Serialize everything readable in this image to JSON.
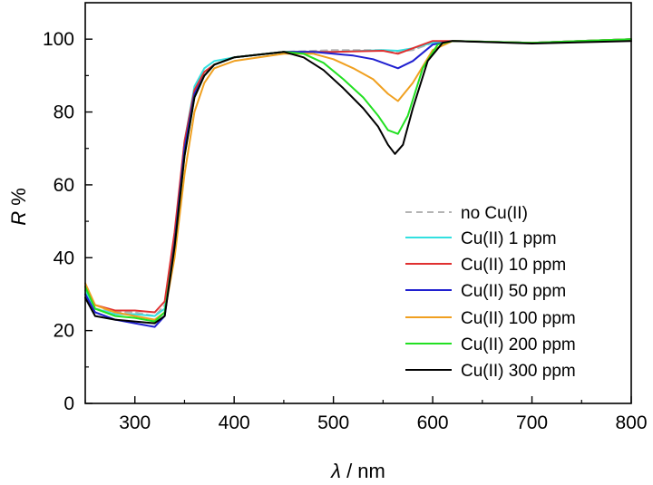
{
  "chart_data": {
    "type": "line",
    "xlabel_symbol": "λ",
    "xlabel_unit": " / nm",
    "ylabel_symbol": "R",
    "ylabel_unit": " %",
    "xlim": [
      250,
      800
    ],
    "ylim": [
      0,
      110
    ],
    "xticks": [
      300,
      400,
      500,
      600,
      700,
      800
    ],
    "yticks": [
      0,
      20,
      40,
      60,
      80,
      100
    ],
    "legend_position": "center-right",
    "series": [
      {
        "name": "no Cu(II)",
        "color": "#b4b4b4",
        "dashed": true,
        "x": [
          250,
          260,
          280,
          300,
          320,
          330,
          340,
          350,
          360,
          370,
          380,
          400,
          450,
          500,
          550,
          565,
          580,
          600,
          620,
          700,
          800
        ],
        "y": [
          32,
          26,
          25,
          25,
          24,
          27,
          45,
          70,
          85,
          91,
          93,
          95,
          96.5,
          97,
          97,
          96.5,
          97,
          99,
          99.5,
          99,
          100
        ]
      },
      {
        "name": "Cu(II) 1 ppm",
        "color": "#33e0e0",
        "dashed": false,
        "x": [
          250,
          260,
          280,
          300,
          320,
          330,
          340,
          350,
          360,
          370,
          380,
          400,
          450,
          500,
          550,
          565,
          580,
          600,
          620,
          700,
          800
        ],
        "y": [
          31,
          26,
          24.5,
          24.5,
          24,
          26,
          45,
          72,
          87,
          92,
          94,
          95,
          96.5,
          96.5,
          97,
          96.8,
          97.5,
          99,
          99.5,
          99,
          100
        ]
      },
      {
        "name": "Cu(II) 10 ppm",
        "color": "#e03030",
        "dashed": false,
        "x": [
          250,
          260,
          280,
          300,
          320,
          330,
          340,
          350,
          360,
          370,
          380,
          400,
          450,
          500,
          550,
          565,
          580,
          600,
          620,
          700,
          800
        ],
        "y": [
          32,
          27,
          25.5,
          25.5,
          25,
          28,
          47,
          72,
          86,
          91,
          93,
          95,
          96.5,
          96.5,
          96.8,
          96,
          97.5,
          99.5,
          99.5,
          99,
          100
        ]
      },
      {
        "name": "Cu(II) 50 ppm",
        "color": "#2020d0",
        "dashed": false,
        "x": [
          250,
          260,
          280,
          300,
          320,
          330,
          340,
          350,
          360,
          370,
          380,
          400,
          450,
          480,
          500,
          520,
          540,
          555,
          565,
          580,
          600,
          620,
          700,
          800
        ],
        "y": [
          30,
          25,
          23,
          22,
          21,
          24,
          44,
          70,
          85,
          90,
          93,
          95,
          96.5,
          96.5,
          96,
          95.5,
          94.5,
          93,
          92,
          94,
          98.5,
          99.5,
          99,
          100
        ]
      },
      {
        "name": "Cu(II) 100 ppm",
        "color": "#f0a020",
        "dashed": false,
        "x": [
          250,
          260,
          280,
          300,
          320,
          330,
          340,
          350,
          360,
          370,
          380,
          400,
          450,
          480,
          500,
          520,
          540,
          555,
          565,
          580,
          600,
          620,
          700,
          800
        ],
        "y": [
          33,
          27,
          25,
          24,
          23,
          25,
          40,
          63,
          80,
          88,
          92,
          94,
          96,
          96,
          94.5,
          92,
          89,
          85,
          83,
          88,
          97,
          99.5,
          99,
          100
        ]
      },
      {
        "name": "Cu(II) 200 ppm",
        "color": "#22e022",
        "dashed": false,
        "x": [
          250,
          260,
          280,
          300,
          320,
          330,
          340,
          350,
          360,
          370,
          380,
          400,
          450,
          470,
          490,
          510,
          530,
          545,
          555,
          565,
          575,
          590,
          605,
          620,
          700,
          800
        ],
        "y": [
          32,
          26,
          24,
          23.5,
          22.5,
          25,
          43,
          68,
          84,
          90,
          93,
          95,
          96.5,
          96,
          93.5,
          89,
          84,
          79,
          75,
          74,
          79,
          92,
          98.5,
          99.5,
          99,
          100
        ]
      },
      {
        "name": "Cu(II) 300 ppm",
        "color": "#000000",
        "dashed": false,
        "x": [
          250,
          260,
          280,
          300,
          320,
          330,
          340,
          350,
          360,
          370,
          380,
          400,
          450,
          470,
          490,
          510,
          530,
          545,
          555,
          562,
          570,
          580,
          595,
          610,
          620,
          700,
          800
        ],
        "y": [
          29,
          24,
          23,
          22.5,
          22,
          24,
          43,
          68,
          84,
          90,
          93,
          95,
          96.5,
          95,
          91.5,
          86.5,
          81,
          76,
          71,
          68.5,
          71,
          81,
          94,
          99,
          99.5,
          98.8,
          99.5
        ]
      }
    ]
  }
}
